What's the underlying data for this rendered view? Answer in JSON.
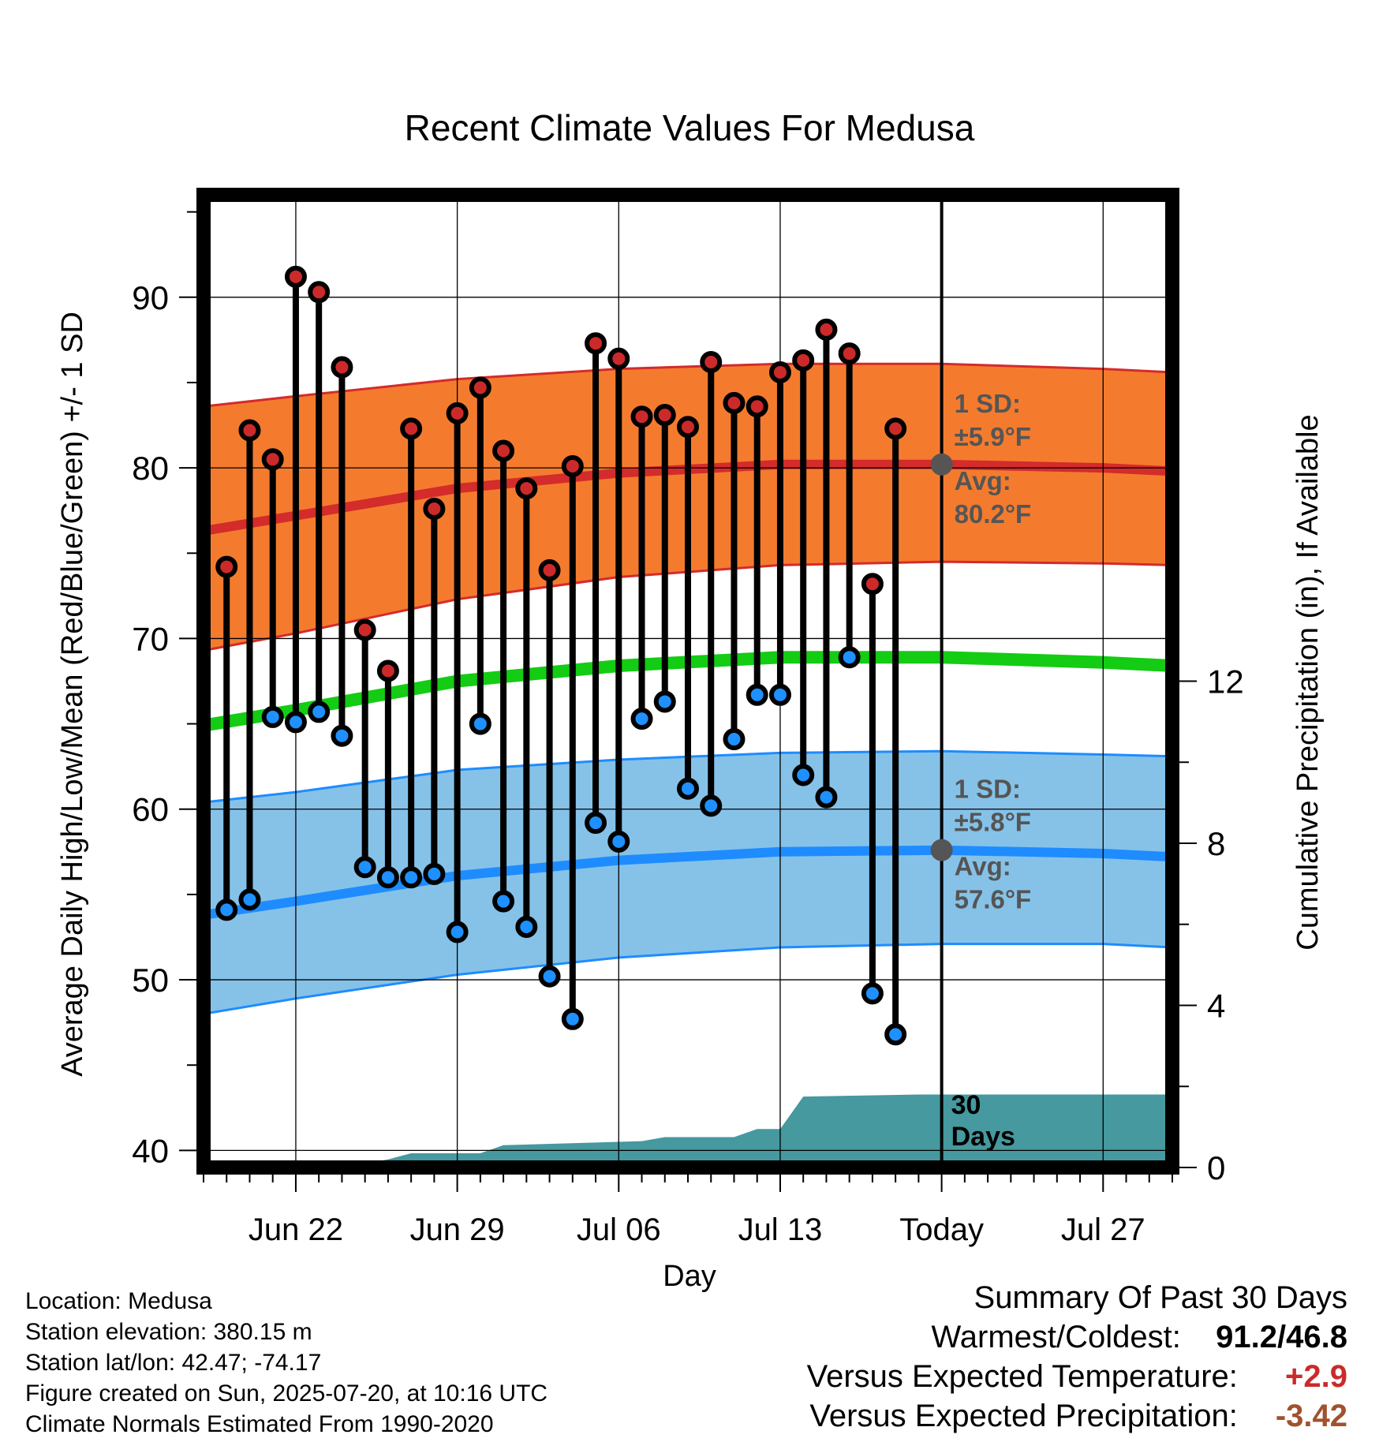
{
  "chart_data": {
    "type": "line",
    "title": "Recent Climate Values For Medusa",
    "xlabel": "Day",
    "ylabel_left": "Average Daily High/Low/Mean (Red/Blue/Green) +/- 1 SD",
    "ylabel_right": "Cumulative Precipitation (in), If Available",
    "y_left_range": [
      39,
      96
    ],
    "y_left_ticks": [
      40,
      50,
      60,
      70,
      80,
      90
    ],
    "y_right_range": [
      0,
      24
    ],
    "y_right_ticks": [
      0,
      4,
      8,
      12
    ],
    "x_range": [
      "2025-06-18",
      "2025-07-30"
    ],
    "x_ticks": [
      {
        "date": "2025-06-22",
        "label": "Jun 22"
      },
      {
        "date": "2025-06-29",
        "label": "Jun 29"
      },
      {
        "date": "2025-07-06",
        "label": "Jul 06"
      },
      {
        "date": "2025-07-13",
        "label": "Jul 13"
      },
      {
        "date": "2025-07-20",
        "label": "Today"
      },
      {
        "date": "2025-07-27",
        "label": "Jul 27"
      }
    ],
    "grid": true,
    "today_marker": {
      "date": "2025-07-20",
      "label": "30 Days"
    },
    "normals": {
      "dates": [
        "2025-06-18",
        "2025-06-22",
        "2025-06-29",
        "2025-07-06",
        "2025-07-13",
        "2025-07-20",
        "2025-07-27",
        "2025-07-30"
      ],
      "high_mean": [
        76.3,
        77.2,
        78.8,
        79.7,
        80.2,
        80.2,
        80.0,
        79.8
      ],
      "high_upper": [
        83.6,
        84.2,
        85.2,
        85.8,
        86.1,
        86.1,
        85.8,
        85.6
      ],
      "high_lower": [
        69.3,
        70.3,
        72.3,
        73.6,
        74.3,
        74.5,
        74.4,
        74.3
      ],
      "mean": [
        64.9,
        65.8,
        67.5,
        68.4,
        68.9,
        68.9,
        68.6,
        68.4
      ],
      "low_mean": [
        53.8,
        54.6,
        56.1,
        57.0,
        57.5,
        57.6,
        57.4,
        57.2
      ],
      "low_upper": [
        60.4,
        61.0,
        62.3,
        62.9,
        63.3,
        63.4,
        63.2,
        63.1
      ],
      "low_lower": [
        48.0,
        48.9,
        50.3,
        51.3,
        51.9,
        52.1,
        52.1,
        51.9
      ]
    },
    "series": [
      {
        "name": "High",
        "dates": [
          "2025-06-19",
          "2025-06-20",
          "2025-06-21",
          "2025-06-22",
          "2025-06-23",
          "2025-06-24",
          "2025-06-25",
          "2025-06-26",
          "2025-06-27",
          "2025-06-28",
          "2025-06-29",
          "2025-06-30",
          "2025-07-01",
          "2025-07-02",
          "2025-07-03",
          "2025-07-04",
          "2025-07-05",
          "2025-07-06",
          "2025-07-07",
          "2025-07-08",
          "2025-07-09",
          "2025-07-10",
          "2025-07-11",
          "2025-07-12",
          "2025-07-13",
          "2025-07-14",
          "2025-07-15",
          "2025-07-16",
          "2025-07-17",
          "2025-07-18",
          "2025-07-19"
        ],
        "values": [
          74.2,
          82.2,
          80.5,
          91.2,
          90.3,
          85.9,
          70.5,
          68.1,
          82.3,
          77.6,
          83.2,
          84.7,
          81.0,
          78.8,
          74.0,
          80.1,
          87.3,
          86.4,
          83.0,
          83.1,
          82.4,
          86.2,
          83.8,
          83.6,
          85.6,
          86.3,
          88.1,
          86.7,
          73.2,
          82.3,
          null
        ]
      },
      {
        "name": "Low",
        "dates": [
          "2025-06-19",
          "2025-06-20",
          "2025-06-21",
          "2025-06-22",
          "2025-06-23",
          "2025-06-24",
          "2025-06-25",
          "2025-06-26",
          "2025-06-27",
          "2025-06-28",
          "2025-06-29",
          "2025-06-30",
          "2025-07-01",
          "2025-07-02",
          "2025-07-03",
          "2025-07-04",
          "2025-07-05",
          "2025-07-06",
          "2025-07-07",
          "2025-07-08",
          "2025-07-09",
          "2025-07-10",
          "2025-07-11",
          "2025-07-12",
          "2025-07-13",
          "2025-07-14",
          "2025-07-15",
          "2025-07-16",
          "2025-07-17",
          "2025-07-18",
          "2025-07-19"
        ],
        "values": [
          54.1,
          54.7,
          65.4,
          65.1,
          65.7,
          64.3,
          56.6,
          56.0,
          56.0,
          56.2,
          52.8,
          65.0,
          54.6,
          53.1,
          50.2,
          47.7,
          59.2,
          58.1,
          65.3,
          66.3,
          61.2,
          60.2,
          64.1,
          66.7,
          66.7,
          62.0,
          60.7,
          68.9,
          49.2,
          46.8,
          null
        ]
      },
      {
        "name": "Cumulative Precipitation",
        "dates": [
          "2025-06-18",
          "2025-06-24",
          "2025-06-25",
          "2025-06-26",
          "2025-06-27",
          "2025-06-30",
          "2025-07-01",
          "2025-07-07",
          "2025-07-08",
          "2025-07-11",
          "2025-07-12",
          "2025-07-13",
          "2025-07-14",
          "2025-07-19",
          "2025-07-30"
        ],
        "values": [
          0.0,
          0.0,
          0.1,
          0.2,
          0.35,
          0.35,
          0.55,
          0.65,
          0.75,
          0.75,
          0.95,
          0.95,
          1.75,
          1.8,
          1.8
        ]
      }
    ],
    "annotations": {
      "high_sd_label": "1 SD:",
      "high_sd_value": "±5.9°F",
      "high_avg_label": "Avg:",
      "high_avg_value": "80.2°F",
      "low_sd_label": "1 SD:",
      "low_sd_value": "±5.8°F",
      "low_avg_label": "Avg:",
      "low_avg_value": "57.6°F"
    }
  },
  "colors": {
    "high_band": "#f47b2e",
    "high_line": "#d42b2b",
    "mean_line": "#13cc13",
    "low_band": "#86c2e8",
    "low_line": "#1e8cff",
    "precip": "#45999f",
    "annotation": "#555555",
    "high_dot": "#cc2a2a",
    "low_dot": "#1e90ff",
    "pos_anomaly": "#cc2a2a",
    "neg_anomaly": "#a0522d"
  },
  "footer": {
    "location": "Location: Medusa",
    "elevation": "Station elevation: 380.15 m",
    "latlon": "Station lat/lon: 42.47; -74.17",
    "created": "Figure created on Sun, 2025-07-20, at 10:16 UTC",
    "normals": "Climate Normals Estimated From 1990-2020"
  },
  "summary": {
    "title": "Summary Of Past 30 Days",
    "warm_cold_label": "Warmest/Coldest:",
    "warm_cold_value": "91.2/46.8",
    "temp_label": "Versus Expected Temperature:",
    "temp_value": "+2.9",
    "precip_label": "Versus Expected Precipitation:",
    "precip_value": "-3.42"
  }
}
